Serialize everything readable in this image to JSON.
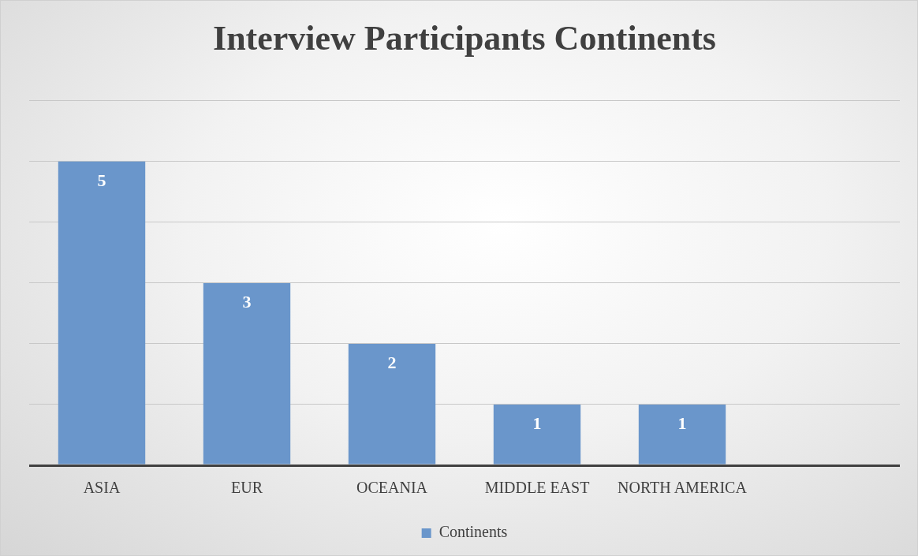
{
  "chart_data": {
    "type": "bar",
    "title": "Interview Participants Continents",
    "categories": [
      "ASIA",
      "EUR",
      "OCEANIA",
      "MIDDLE EAST",
      "NORTH AMERICA",
      null
    ],
    "series": [
      {
        "name": "Continents",
        "color": "#6a96cb",
        "values": [
          5,
          3,
          2,
          1,
          1,
          null
        ]
      }
    ],
    "ylim": [
      0,
      6
    ],
    "tick_labels": "x",
    "grid": "y",
    "legend": "bottom",
    "data_labels": true
  }
}
